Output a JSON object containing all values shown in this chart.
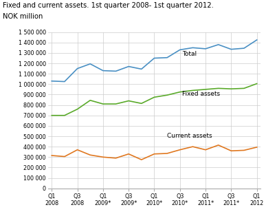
{
  "title_line1": "Fixed and current assets. 1st quarter 2008- 1st quarter 2012.",
  "title_line2": "NOK million",
  "x_labels": [
    "Q1\n2008",
    "Q3\n2008",
    "Q1\n2009*",
    "Q3\n2009*",
    "Q1\n2010*",
    "Q3\n2010*",
    "Q1\n2011*",
    "Q3\n2011*",
    "Q1\n2012"
  ],
  "x_positions": [
    0,
    2,
    4,
    6,
    8,
    10,
    12,
    14,
    16
  ],
  "total": [
    1030000,
    1025000,
    1150000,
    1195000,
    1130000,
    1125000,
    1170000,
    1145000,
    1250000,
    1255000,
    1330000,
    1350000,
    1340000,
    1380000,
    1335000,
    1345000,
    1425000
  ],
  "fixed_assets": [
    700000,
    700000,
    760000,
    845000,
    810000,
    810000,
    840000,
    815000,
    875000,
    895000,
    925000,
    940000,
    950000,
    960000,
    955000,
    960000,
    1005000
  ],
  "current_assets": [
    315000,
    305000,
    370000,
    320000,
    300000,
    290000,
    330000,
    275000,
    330000,
    335000,
    370000,
    400000,
    370000,
    415000,
    360000,
    365000,
    395000
  ],
  "total_color": "#4a90c4",
  "fixed_color": "#5aaa2a",
  "current_color": "#e07820",
  "total_label": "Total",
  "fixed_label": "Fixed assets",
  "current_label": "Current assets",
  "ylim": [
    0,
    1500000
  ],
  "yticks_all": [
    0,
    100000,
    200000,
    300000,
    400000,
    500000,
    600000,
    700000,
    800000,
    900000,
    1000000,
    1100000,
    1200000,
    1300000,
    1400000,
    1500000
  ],
  "ytick_labels": [
    "0",
    "100 000",
    "200 000",
    "300 000",
    "400 000",
    "500 000",
    "600 000",
    "700 000",
    "800 000",
    "900 000",
    "1 000 000",
    "1 100 000",
    "1 200 000",
    "1 300 000",
    "1 400 000",
    "1 500 000"
  ],
  "background_color": "#ffffff",
  "grid_color": "#cccccc"
}
